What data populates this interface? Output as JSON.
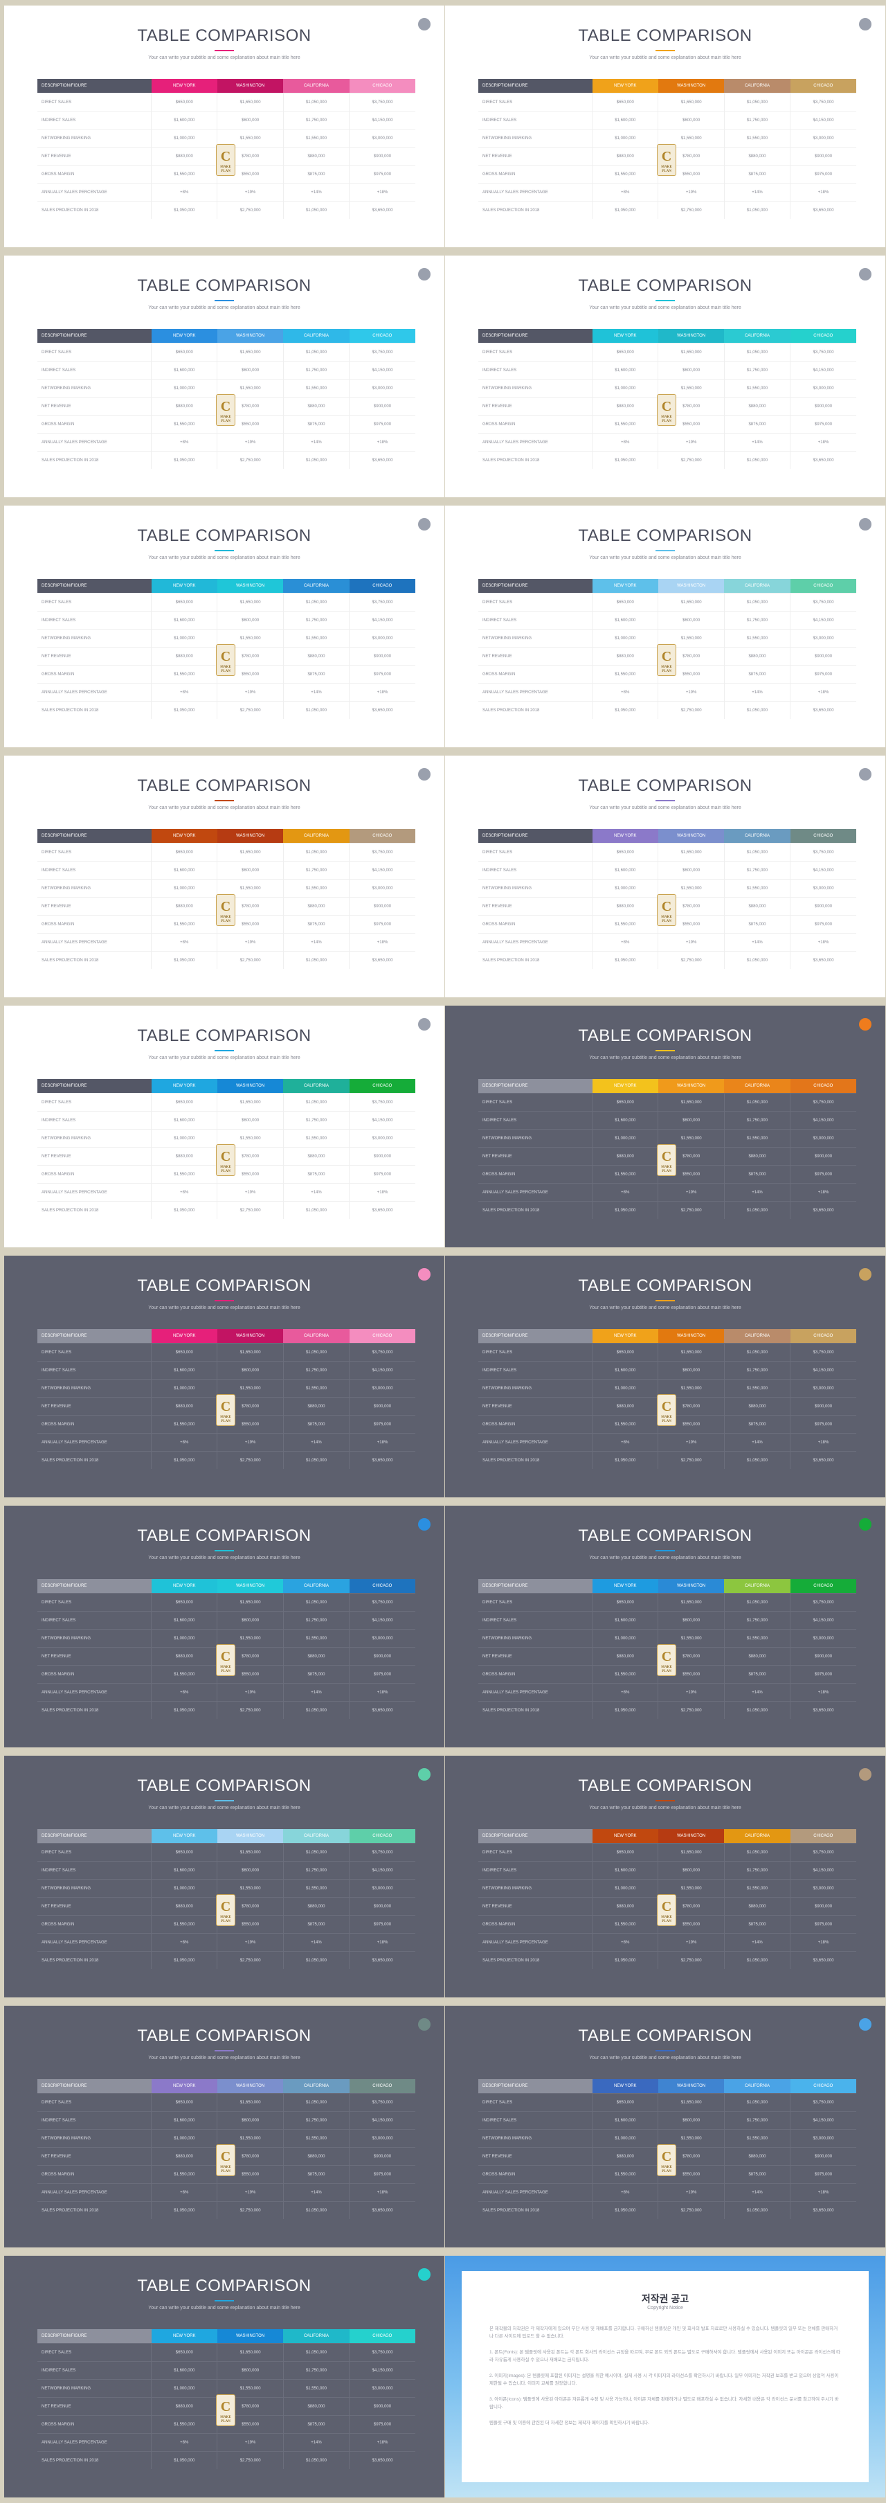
{
  "slides": [
    {
      "theme": "light",
      "badge": "#9aa0ad",
      "colors": [
        "#e6207a",
        "#c21463",
        "#e85a9c",
        "#f48dbf"
      ]
    },
    {
      "theme": "light",
      "badge": "#9aa0ad",
      "colors": [
        "#f0a21a",
        "#e2790f",
        "#b98b6a",
        "#c8a25f"
      ]
    },
    {
      "theme": "light",
      "badge": "#9aa0ad",
      "colors": [
        "#2b8fe0",
        "#4aa3e6",
        "#2fb8e8",
        "#2fc8ea"
      ]
    },
    {
      "theme": "light",
      "badge": "#9aa0ad",
      "colors": [
        "#1fc2d8",
        "#20b8c9",
        "#2bcad2",
        "#25d1cd"
      ]
    },
    {
      "theme": "light",
      "badge": "#9aa0ad",
      "colors": [
        "#21b8d8",
        "#1fc6d8",
        "#2a8fd6",
        "#1e73be"
      ]
    },
    {
      "theme": "light",
      "badge": "#9aa0ad",
      "colors": [
        "#5ec0ea",
        "#a9d4f3",
        "#87d5da",
        "#5ecfa9"
      ]
    },
    {
      "theme": "light",
      "badge": "#9aa0ad",
      "colors": [
        "#c1480f",
        "#b63b12",
        "#e39712",
        "#b39a7d"
      ]
    },
    {
      "theme": "light",
      "badge": "#9aa0ad",
      "colors": [
        "#8b79c9",
        "#7b8fcd",
        "#6a9bc0",
        "#6f8a86"
      ]
    },
    {
      "theme": "light",
      "badge": "#9aa0ad",
      "colors": [
        "#1fa7e0",
        "#1688d6",
        "#1fb09a",
        "#15ac39"
      ]
    },
    {
      "theme": "dark",
      "badge": "#ef7c1d",
      "colors": [
        "#f3c21c",
        "#f09a1b",
        "#ea851a",
        "#e3761a"
      ]
    },
    {
      "theme": "dark",
      "badge": "#f48dbf",
      "colors": [
        "#e6207a",
        "#c21463",
        "#e85a9c",
        "#f48dbf"
      ]
    },
    {
      "theme": "dark",
      "badge": "#c8a25f",
      "colors": [
        "#f0a21a",
        "#e2790f",
        "#b98b6a",
        "#c8a25f"
      ]
    },
    {
      "theme": "dark",
      "badge": "#2b8fe0",
      "colors": [
        "#1fc2d8",
        "#20c9d9",
        "#2aa3e0",
        "#1e73be"
      ]
    },
    {
      "theme": "dark",
      "badge": "#15ac39",
      "colors": [
        "#1e9be0",
        "#2a8ad6",
        "#8cc63f",
        "#15ac39"
      ]
    },
    {
      "theme": "dark",
      "badge": "#5ecfa9",
      "colors": [
        "#5ec0ea",
        "#a9d4f3",
        "#87d5da",
        "#5ecfa9"
      ]
    },
    {
      "theme": "dark",
      "badge": "#b39a7d",
      "colors": [
        "#c1480f",
        "#b63b12",
        "#e39712",
        "#b39a7d"
      ]
    },
    {
      "theme": "dark",
      "badge": "#6f8a86",
      "colors": [
        "#8b79c9",
        "#7b8fcd",
        "#6a9bc0",
        "#6f8a86"
      ]
    },
    {
      "theme": "dark",
      "badge": "#4aa3e6",
      "colors": [
        "#3a69bf",
        "#3f84d1",
        "#4aa3e6",
        "#4ab3ec"
      ]
    },
    {
      "theme": "dark",
      "badge": "#25d1cd",
      "colors": [
        "#1fa7e0",
        "#1688d6",
        "#1fb8c9",
        "#25d1cd"
      ]
    }
  ],
  "slide_text": {
    "title": "TABLE COMPARISON",
    "subtitle": "Your can write your subtitle and some explanation about main title here",
    "headers": [
      "DESCRIPTION/FIGURE",
      "NEW YORK",
      "WASHINGTON",
      "CALIFORNIA",
      "CHICAGO"
    ],
    "rows": [
      [
        "DIRECT SALES",
        "$650,000",
        "$1,650,000",
        "$1,050,000",
        "$3,750,000"
      ],
      [
        "INDIRECT SALES",
        "$1,600,000",
        "$600,000",
        "$1,750,000",
        "$4,150,000"
      ],
      [
        "NETWORKING MARKING",
        "$1,000,000",
        "$1,550,000",
        "$1,550,000",
        "$3,000,000"
      ],
      [
        "NET REVENUE",
        "$880,000",
        "$780,000",
        "$880,000",
        "$900,000"
      ],
      [
        "GROSS MARGIN",
        "$1,550,000",
        "$550,000",
        "$875,000",
        "$975,000"
      ],
      [
        "ANNUALLY SALES PERCENTAGE",
        "+8%",
        "+19%",
        "+14%",
        "+18%"
      ],
      [
        "SALES PROJECTION IN 2018",
        "$1,050,000",
        "$2,750,000",
        "$1,050,000",
        "$3,650,000"
      ]
    ],
    "logo_mark": "C",
    "logo_sub": "MAKE PLAN"
  },
  "notice": {
    "title": "저작권 공고",
    "subtitle": "Copyright Notice",
    "paragraphs": [
      "본 제작물의 저작권은 각 제작자에게 있으며 무단 사용 및 재배포를 금지합니다. 구매하신 템플릿은 개인 및 회사의 발표 자료로만 사용하실 수 있습니다. 템플릿의 일부 또는 전체를 판매하거나 다른 사이트에 업로드 할 수 없습니다.",
      "1. 폰트(Fonts): 본 템플릿에 사용된 폰트는 각 폰트 회사의 라이선스 규정을 따르며, 무료 폰트 외의 폰트는 별도로 구매하셔야 합니다. 템플릿에서 사용된 이미지 또는 아이콘은 라이선스에 따라 자유롭게 사용하실 수 있으나 재배포는 금지됩니다.",
      "2. 이미지(Images): 본 템플릿에 포함된 이미지는 설명을 위한 예시이며, 실제 사용 시 각 이미지의 라이선스를 확인하시기 바랍니다. 일부 이미지는 저작권 보호를 받고 있으며 상업적 사용이 제한될 수 있습니다. 이미지 교체를 권장합니다.",
      "3. 아이콘(Icons): 템플릿에 사용된 아이콘은 자유롭게 수정 및 사용 가능하나, 아이콘 자체를 판매하거나 별도로 배포하실 수 없습니다. 자세한 내용은 각 라이선스 문서를 참고하여 주시기 바랍니다.",
      "템플릿 구매 및 이용에 관련된 더 자세한 정보는 제작자 페이지를 확인하시기 바랍니다."
    ]
  }
}
